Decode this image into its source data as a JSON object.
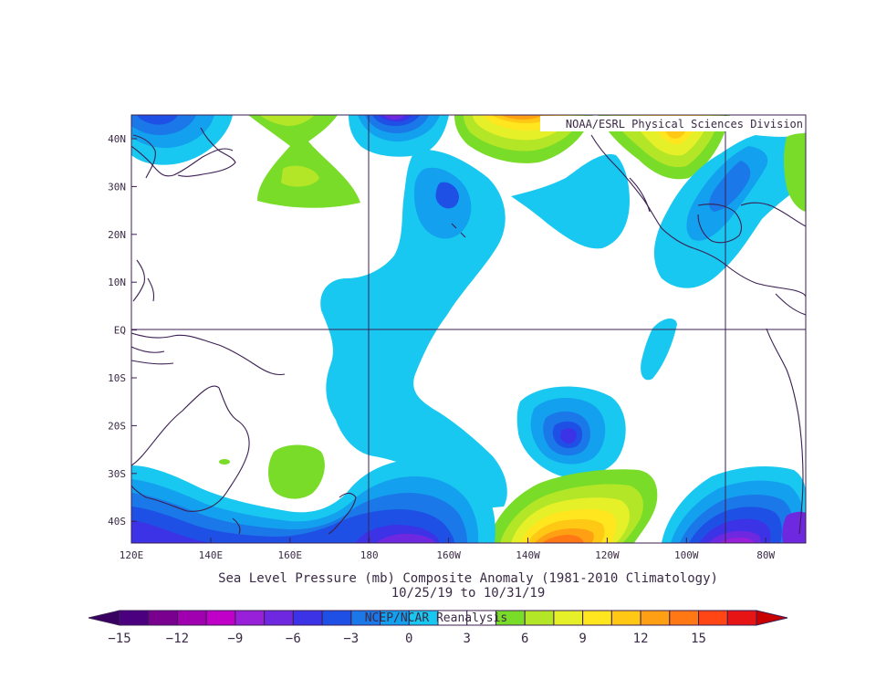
{
  "map": {
    "credit": "NOAA/ESRL Physical Sciences Division",
    "lat_labels": [
      "40N",
      "30N",
      "20N",
      "10N",
      "EQ",
      "10S",
      "20S",
      "30S",
      "40S"
    ],
    "lon_labels": [
      "120E",
      "140E",
      "160E",
      "180",
      "160W",
      "140W",
      "120W",
      "100W",
      "80W"
    ],
    "title": "Sea Level Pressure (mb) Composite Anomaly (1981-2010 Climatology)",
    "date_range": "10/25/19  to 10/31/19",
    "source": "NCEP/NCAR Reanalysis",
    "extent": {
      "lon_min": 120,
      "lon_max": 290,
      "lat_min": -45,
      "lat_max": 45
    }
  },
  "colorbar": {
    "labels": [
      "−15",
      "−12",
      "−9",
      "−6",
      "−3",
      "0",
      "3",
      "6",
      "9",
      "12",
      "15"
    ],
    "colors": [
      "#4b0080",
      "#7a0090",
      "#a000b0",
      "#c000c8",
      "#9820d8",
      "#6e28e0",
      "#3c32e6",
      "#1e50e6",
      "#1a78e8",
      "#13a0ee",
      "#18c8f0",
      "#ffffff",
      "#ffffff",
      "#78dc28",
      "#b4e628",
      "#e6f028",
      "#ffe61e",
      "#ffc814",
      "#ffa014",
      "#ff7814",
      "#ff4614",
      "#e61414"
    ],
    "arrow_left": "#380060",
    "arrow_right": "#c80000"
  },
  "colors": {
    "gridline": "#3b1f52",
    "coast": "#3b1f52"
  }
}
